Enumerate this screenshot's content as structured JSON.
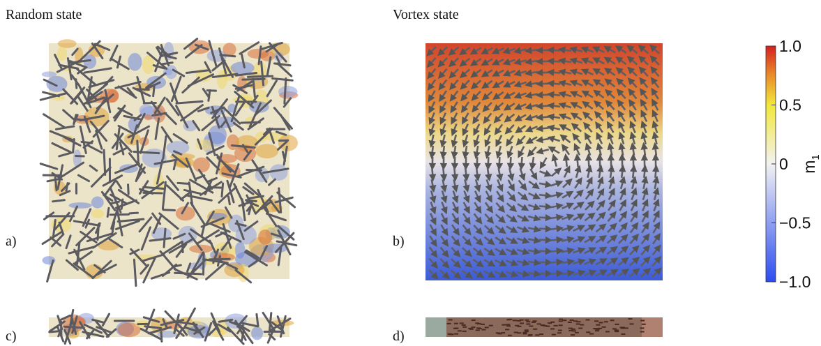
{
  "panels": [
    {
      "title": "Random state",
      "top_label": "a)",
      "side_label": "c)"
    },
    {
      "title": "Vortex state",
      "top_label": "b)",
      "side_label": "d)"
    }
  ],
  "colorbar": {
    "label": "m",
    "label_subscript": "1",
    "lim": [
      -1,
      1
    ],
    "ticks": [
      {
        "value": 1,
        "label": "1.0"
      },
      0.5,
      0,
      {
        "value": -0.5,
        "label": "−0.5"
      },
      {
        "value": -1,
        "label": "−1.0"
      }
    ]
  }
}
